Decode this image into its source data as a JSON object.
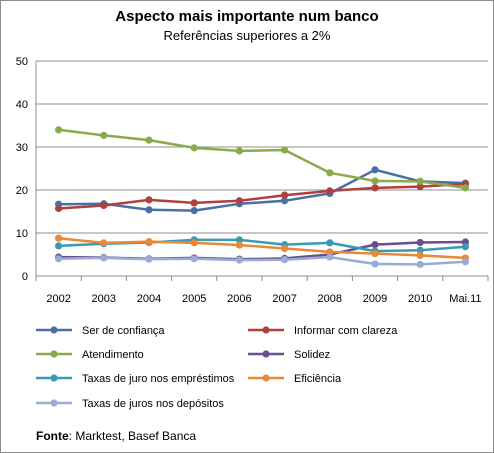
{
  "chart_data": {
    "type": "line",
    "title": "Aspecto mais importante num banco",
    "subtitle": "Referências superiores a 2%",
    "categories": [
      "2002",
      "2003",
      "2004",
      "2005",
      "2006",
      "2007",
      "2008",
      "2009",
      "2010",
      "Mai.11"
    ],
    "ylim": [
      0,
      50
    ],
    "yticks": [
      0,
      10,
      20,
      30,
      40,
      50
    ],
    "grid": true,
    "legend_position": "bottom",
    "series": [
      {
        "name": "Ser de confiança",
        "color": "#4a6fa5",
        "values": [
          16.7,
          16.8,
          15.4,
          15.2,
          16.8,
          17.5,
          19.2,
          24.7,
          22.0,
          21.6
        ]
      },
      {
        "name": "Informar com clareza",
        "color": "#b0403e",
        "values": [
          15.7,
          16.4,
          17.7,
          17.0,
          17.5,
          18.8,
          19.8,
          20.5,
          20.8,
          21.4
        ]
      },
      {
        "name": "Atendimento",
        "color": "#8aab4a",
        "values": [
          34.0,
          32.7,
          31.6,
          29.8,
          29.1,
          29.3,
          24.0,
          22.1,
          22.0,
          20.5
        ]
      },
      {
        "name": "Solidez",
        "color": "#6a4f8e",
        "values": [
          4.4,
          4.3,
          4.0,
          4.2,
          3.9,
          4.1,
          5.0,
          7.3,
          7.8,
          7.9
        ]
      },
      {
        "name": "Taxas de juro nos empréstimos",
        "color": "#3a9bb0",
        "values": [
          7.0,
          7.5,
          7.8,
          8.4,
          8.4,
          7.3,
          7.7,
          5.8,
          6.0,
          6.8
        ]
      },
      {
        "name": "Eficiência",
        "color": "#e8893a",
        "values": [
          8.8,
          7.7,
          8.0,
          7.7,
          7.2,
          6.4,
          5.6,
          5.2,
          4.8,
          4.2
        ]
      },
      {
        "name": "Taxas de juros nos depósitos",
        "color": "#97add6",
        "values": [
          4.0,
          4.2,
          3.9,
          4.0,
          3.7,
          3.8,
          4.4,
          2.8,
          2.7,
          3.3
        ]
      }
    ]
  },
  "source": {
    "label": "Fonte",
    "text": ": Marktest, Basef Banca"
  }
}
